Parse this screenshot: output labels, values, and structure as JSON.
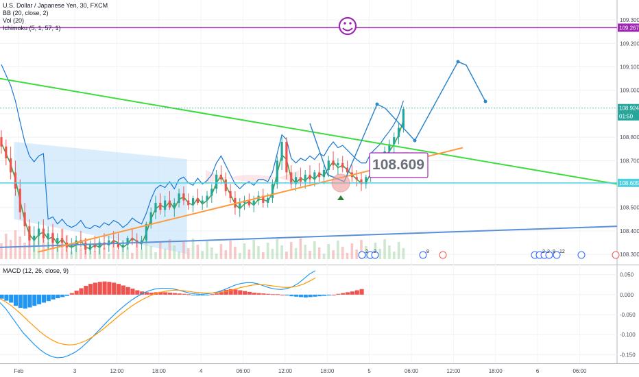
{
  "header": {
    "symbol_title": "U.S. Dollar / Japanese Yen, 30, FXCM",
    "bb_label": "BB (20, close, 2)",
    "vol_label": "Vol (20)",
    "ichimoku_label": "Ichimoku (5, 1, 57, 1)",
    "macd_label": "MACD (12, 26, close, 9)"
  },
  "price_axis": {
    "ticks": [
      "109.300",
      "109.200",
      "109.100",
      "109.000",
      "108.900",
      "108.800",
      "108.700",
      "108.600",
      "108.500",
      "108.400",
      "108.300"
    ],
    "badges": [
      {
        "value": "109.267",
        "color": "#9c27b0"
      },
      {
        "value": "108.924",
        "color": "#26a69a"
      },
      {
        "value": "01:50",
        "color": "#26a69a"
      },
      {
        "value": "108.605",
        "color": "#4dd0e1"
      }
    ]
  },
  "macd_axis": {
    "ticks": [
      "0.050",
      "0.000",
      "-0.050",
      "-0.100",
      "-0.150"
    ]
  },
  "time_axis": {
    "ticks": [
      "Feb",
      "3",
      "12:00",
      "18:00",
      "4",
      "06:00",
      "12:00",
      "18:00",
      "5",
      "06:00",
      "12:00",
      "18:00",
      "6",
      "06:00"
    ]
  },
  "annotations": {
    "price_callout": "108.609",
    "smiley": "☺",
    "event_numbers": [
      "2",
      "2",
      "8",
      "2",
      "2",
      "8",
      "12"
    ]
  },
  "colors": {
    "resistance_line": "#3ddc3d",
    "support_line": "#ff9a3c",
    "long_trendline": "#5b8fd9",
    "forecast_path": "#2f86c9",
    "target_line": "#9c27b0",
    "level_line": "#4dd0e1",
    "bull_candle": "#26a69a",
    "bear_candle": "#ef5350",
    "bb_upper": "#1976d2",
    "bb_basis": "#43a047",
    "kumo": "#bbdefb",
    "macd_line": "#2196f3",
    "signal_line": "#ff9800",
    "hist_pos": "#ef5350",
    "hist_neg": "#2196f3"
  },
  "chart_data": {
    "type": "candlestick",
    "y_range": [
      108.28,
      109.35
    ],
    "macd_range": [
      -0.165,
      0.065
    ],
    "x_range": [
      0,
      132
    ],
    "levels": [
      109.267,
      108.924,
      108.605
    ],
    "candles": [
      [
        108.8,
        108.83,
        108.73,
        108.76
      ],
      [
        108.76,
        108.79,
        108.68,
        108.71
      ],
      [
        108.71,
        108.76,
        108.62,
        108.65
      ],
      [
        108.65,
        108.7,
        108.55,
        108.58
      ],
      [
        108.58,
        108.62,
        108.45,
        108.48
      ],
      [
        108.48,
        108.52,
        108.38,
        108.42
      ],
      [
        108.42,
        108.45,
        108.33,
        108.36
      ],
      [
        108.36,
        108.42,
        108.31,
        108.38
      ],
      [
        108.38,
        108.44,
        108.34,
        108.41
      ],
      [
        108.41,
        108.45,
        108.35,
        108.37
      ],
      [
        108.37,
        108.42,
        108.32,
        108.39
      ],
      [
        108.39,
        108.43,
        108.33,
        108.35
      ],
      [
        108.35,
        108.39,
        108.31,
        108.37
      ],
      [
        108.37,
        108.41,
        108.33,
        108.35
      ],
      [
        108.35,
        108.38,
        108.31,
        108.33
      ],
      [
        108.33,
        108.37,
        108.3,
        108.34
      ],
      [
        108.34,
        108.38,
        108.31,
        108.36
      ],
      [
        108.36,
        108.4,
        108.33,
        108.35
      ],
      [
        108.35,
        108.37,
        108.3,
        108.32
      ],
      [
        108.32,
        108.36,
        108.3,
        108.34
      ],
      [
        108.34,
        108.38,
        108.31,
        108.33
      ],
      [
        108.33,
        108.37,
        108.3,
        108.35
      ],
      [
        108.35,
        108.39,
        108.32,
        108.34
      ],
      [
        108.34,
        108.38,
        108.31,
        108.36
      ],
      [
        108.36,
        108.4,
        108.33,
        108.35
      ],
      [
        108.35,
        108.39,
        108.32,
        108.33
      ],
      [
        108.33,
        108.36,
        108.31,
        108.34
      ],
      [
        108.34,
        108.38,
        108.32,
        108.37
      ],
      [
        108.37,
        108.41,
        108.34,
        108.36
      ],
      [
        108.36,
        108.39,
        108.33,
        108.35
      ],
      [
        108.35,
        108.38,
        108.32,
        108.36
      ],
      [
        108.36,
        108.44,
        108.35,
        108.43
      ],
      [
        108.43,
        108.5,
        108.41,
        108.48
      ],
      [
        108.48,
        108.55,
        108.45,
        108.52
      ],
      [
        108.52,
        108.56,
        108.47,
        108.49
      ],
      [
        108.49,
        108.55,
        108.46,
        108.53
      ],
      [
        108.53,
        108.57,
        108.49,
        108.5
      ],
      [
        108.5,
        108.54,
        108.46,
        108.52
      ],
      [
        108.52,
        108.58,
        108.5,
        108.56
      ],
      [
        108.56,
        108.59,
        108.51,
        108.53
      ],
      [
        108.53,
        108.56,
        108.49,
        108.51
      ],
      [
        108.51,
        108.55,
        108.48,
        108.54
      ],
      [
        108.54,
        108.58,
        108.51,
        108.52
      ],
      [
        108.52,
        108.55,
        108.49,
        108.53
      ],
      [
        108.53,
        108.57,
        108.5,
        108.55
      ],
      [
        108.55,
        108.6,
        108.52,
        108.58
      ],
      [
        108.58,
        108.66,
        108.56,
        108.64
      ],
      [
        108.64,
        108.68,
        108.6,
        108.62
      ],
      [
        108.62,
        108.65,
        108.55,
        108.57
      ],
      [
        108.57,
        108.6,
        108.52,
        108.54
      ],
      [
        108.54,
        108.57,
        108.47,
        108.5
      ],
      [
        108.5,
        108.54,
        108.46,
        108.52
      ],
      [
        108.52,
        108.55,
        108.49,
        108.53
      ],
      [
        108.53,
        108.56,
        108.5,
        108.51
      ],
      [
        108.51,
        108.55,
        108.48,
        108.53
      ],
      [
        108.53,
        108.57,
        108.51,
        108.55
      ],
      [
        108.55,
        108.58,
        108.5,
        108.52
      ],
      [
        108.52,
        108.56,
        108.5,
        108.54
      ],
      [
        108.54,
        108.62,
        108.52,
        108.6
      ],
      [
        108.6,
        108.72,
        108.58,
        108.7
      ],
      [
        108.7,
        108.8,
        108.66,
        108.78
      ],
      [
        108.78,
        108.8,
        108.62,
        108.65
      ],
      [
        108.65,
        108.68,
        108.58,
        108.6
      ],
      [
        108.6,
        108.65,
        108.57,
        108.63
      ],
      [
        108.63,
        108.67,
        108.59,
        108.61
      ],
      [
        108.61,
        108.66,
        108.58,
        108.64
      ],
      [
        108.64,
        108.68,
        108.6,
        108.62
      ],
      [
        108.62,
        108.66,
        108.59,
        108.65
      ],
      [
        108.65,
        108.69,
        108.61,
        108.63
      ],
      [
        108.63,
        108.68,
        108.6,
        108.66
      ],
      [
        108.66,
        108.72,
        108.63,
        108.7
      ],
      [
        108.7,
        108.74,
        108.66,
        108.68
      ],
      [
        108.68,
        108.71,
        108.64,
        108.69
      ],
      [
        108.69,
        108.72,
        108.65,
        108.67
      ],
      [
        108.67,
        108.7,
        108.63,
        108.65
      ],
      [
        108.65,
        108.68,
        108.61,
        108.63
      ],
      [
        108.63,
        108.66,
        108.59,
        108.62
      ],
      [
        108.62,
        108.65,
        108.57,
        108.6
      ],
      [
        108.6,
        108.64,
        108.58,
        108.63
      ],
      [
        108.63,
        108.69,
        108.61,
        108.67
      ],
      [
        108.67,
        108.71,
        108.63,
        108.69
      ],
      [
        108.69,
        108.73,
        108.65,
        108.71
      ],
      [
        108.71,
        108.76,
        108.68,
        108.74
      ],
      [
        108.74,
        108.79,
        108.7,
        108.77
      ],
      [
        108.77,
        108.82,
        108.73,
        108.8
      ],
      [
        108.8,
        108.86,
        108.77,
        108.84
      ],
      [
        108.84,
        108.93,
        108.82,
        108.92
      ]
    ],
    "macd_histogram": [
      -0.01,
      -0.015,
      -0.02,
      -0.028,
      -0.033,
      -0.035,
      -0.032,
      -0.028,
      -0.024,
      -0.02,
      -0.016,
      -0.012,
      -0.009,
      -0.006,
      -0.003,
      0.004,
      0.01,
      0.016,
      0.022,
      0.027,
      0.03,
      0.032,
      0.033,
      0.032,
      0.03,
      0.027,
      0.023,
      0.019,
      0.015,
      0.011,
      0.008,
      0.006,
      0.005,
      0.006,
      0.007,
      0.006,
      0.005,
      0.004,
      0.003,
      0.002,
      0.001,
      -0.001,
      -0.002,
      -0.002,
      -0.001,
      0.001,
      0.003,
      0.008,
      0.012,
      0.014,
      0.013,
      0.011,
      0.009,
      0.007,
      0.005,
      0.004,
      0.003,
      0.002,
      0.001,
      0.001,
      0.0,
      -0.002,
      -0.004,
      -0.005,
      -0.006,
      -0.007,
      -0.006,
      -0.005,
      -0.004,
      -0.003,
      -0.002,
      0.0,
      0.002,
      0.004,
      0.006,
      0.008,
      0.011,
      0.014
    ],
    "macd_line": [
      -0.02,
      -0.035,
      -0.055,
      -0.075,
      -0.095,
      -0.11,
      -0.125,
      -0.138,
      -0.148,
      -0.155,
      -0.158,
      -0.157,
      -0.152,
      -0.145,
      -0.135,
      -0.122,
      -0.108,
      -0.093,
      -0.078,
      -0.063,
      -0.049,
      -0.036,
      -0.024,
      -0.013,
      -0.004,
      0.004,
      0.01,
      0.014,
      0.016,
      0.016,
      0.015,
      0.012,
      0.008,
      0.004,
      0.002,
      0.001,
      0.002,
      0.004,
      0.007,
      0.012,
      0.018,
      0.024,
      0.028,
      0.03,
      0.03,
      0.027,
      0.022,
      0.017,
      0.014,
      0.013,
      0.015,
      0.02,
      0.028,
      0.04,
      0.052,
      0.06
    ],
    "signal_line": [
      -0.01,
      -0.018,
      -0.028,
      -0.04,
      -0.053,
      -0.067,
      -0.08,
      -0.093,
      -0.104,
      -0.113,
      -0.12,
      -0.124,
      -0.126,
      -0.125,
      -0.121,
      -0.115,
      -0.107,
      -0.097,
      -0.086,
      -0.074,
      -0.062,
      -0.05,
      -0.039,
      -0.028,
      -0.019,
      -0.011,
      -0.004,
      0.002,
      0.006,
      0.009,
      0.011,
      0.011,
      0.01,
      0.008,
      0.006,
      0.005,
      0.004,
      0.004,
      0.005,
      0.007,
      0.01,
      0.014,
      0.018,
      0.021,
      0.024,
      0.025,
      0.025,
      0.023,
      0.021,
      0.019,
      0.018,
      0.019,
      0.022,
      0.027,
      0.034,
      0.042
    ]
  }
}
